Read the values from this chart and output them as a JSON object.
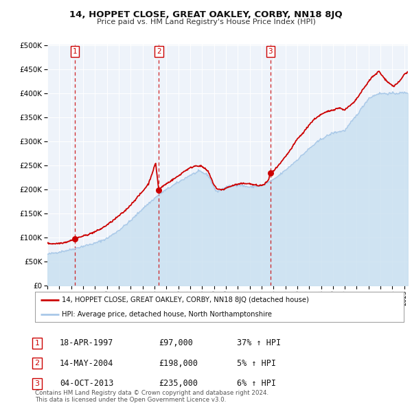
{
  "title": "14, HOPPET CLOSE, GREAT OAKLEY, CORBY, NN18 8JQ",
  "subtitle": "Price paid vs. HM Land Registry's House Price Index (HPI)",
  "legend_line1": "14, HOPPET CLOSE, GREAT OAKLEY, CORBY, NN18 8JQ (detached house)",
  "legend_line2": "HPI: Average price, detached house, North Northamptonshire",
  "footer": "Contains HM Land Registry data © Crown copyright and database right 2024.\nThis data is licensed under the Open Government Licence v3.0.",
  "sale_color": "#cc0000",
  "hpi_color": "#a8c8e8",
  "hpi_fill_color": "#c8dff0",
  "plot_bg": "#eef3fa",
  "ylim": [
    0,
    500000
  ],
  "xlim_start": 1995.0,
  "xlim_end": 2025.3,
  "sale_points": [
    {
      "year": 1997.3,
      "value": 97000,
      "label": "1"
    },
    {
      "year": 2004.37,
      "value": 198000,
      "label": "2"
    },
    {
      "year": 2013.75,
      "value": 235000,
      "label": "3"
    }
  ],
  "vline_years": [
    1997.3,
    2004.37,
    2013.75
  ],
  "table_rows": [
    {
      "num": "1",
      "date": "18-APR-1997",
      "price": "£97,000",
      "hpi": "37% ↑ HPI"
    },
    {
      "num": "2",
      "date": "14-MAY-2004",
      "price": "£198,000",
      "hpi": "5% ↑ HPI"
    },
    {
      "num": "3",
      "date": "04-OCT-2013",
      "price": "£235,000",
      "hpi": "6% ↑ HPI"
    }
  ],
  "yticks": [
    0,
    50000,
    100000,
    150000,
    200000,
    250000,
    300000,
    350000,
    400000,
    450000,
    500000
  ],
  "hpi_anchors_t": [
    1995.0,
    1997.0,
    1998.0,
    1999.0,
    2000.0,
    2001.0,
    2002.0,
    2003.0,
    2004.4,
    2005.0,
    2006.0,
    2007.0,
    2007.8,
    2008.5,
    2009.2,
    2010.0,
    2011.0,
    2012.0,
    2013.0,
    2014.0,
    2015.0,
    2016.0,
    2017.0,
    2018.0,
    2019.0,
    2020.0,
    2021.0,
    2022.0,
    2022.8,
    2023.5,
    2024.0,
    2025.3
  ],
  "hpi_anchors_v": [
    65000,
    75000,
    82000,
    88000,
    98000,
    115000,
    135000,
    160000,
    190000,
    200000,
    215000,
    230000,
    238000,
    230000,
    195000,
    205000,
    210000,
    205000,
    208000,
    220000,
    240000,
    262000,
    285000,
    305000,
    318000,
    323000,
    355000,
    390000,
    400000,
    400000,
    400000,
    402000
  ],
  "sale_anchors_t": [
    1995.0,
    1995.5,
    1996.0,
    1996.5,
    1997.0,
    1997.3,
    1997.5,
    1998.0,
    1998.5,
    1999.0,
    1999.5,
    2000.0,
    2000.5,
    2001.0,
    2001.5,
    2002.0,
    2002.5,
    2003.0,
    2003.5,
    2004.0,
    2004.1,
    2004.37,
    2004.6,
    2005.0,
    2005.5,
    2006.0,
    2006.5,
    2007.0,
    2007.5,
    2008.0,
    2008.5,
    2009.0,
    2009.3,
    2009.8,
    2010.2,
    2010.8,
    2011.3,
    2011.8,
    2012.3,
    2012.8,
    2013.2,
    2013.6,
    2013.75,
    2014.0,
    2014.5,
    2015.0,
    2015.5,
    2016.0,
    2016.5,
    2017.0,
    2017.5,
    2018.0,
    2018.5,
    2019.0,
    2019.5,
    2020.0,
    2020.3,
    2020.8,
    2021.3,
    2021.8,
    2022.2,
    2022.7,
    2022.85,
    2023.2,
    2023.7,
    2024.1,
    2024.6,
    2025.0,
    2025.3
  ],
  "sale_anchors_v": [
    88000,
    87000,
    88000,
    90000,
    94000,
    97000,
    99000,
    103000,
    107000,
    112000,
    118000,
    126000,
    135000,
    145000,
    155000,
    168000,
    182000,
    196000,
    212000,
    248000,
    255000,
    198000,
    205000,
    212000,
    220000,
    228000,
    238000,
    245000,
    250000,
    248000,
    238000,
    210000,
    200000,
    200000,
    205000,
    210000,
    212000,
    213000,
    210000,
    208000,
    210000,
    220000,
    235000,
    238000,
    252000,
    268000,
    285000,
    305000,
    318000,
    335000,
    348000,
    356000,
    362000,
    366000,
    370000,
    366000,
    372000,
    382000,
    400000,
    418000,
    432000,
    442000,
    447000,
    435000,
    422000,
    415000,
    425000,
    440000,
    445000
  ]
}
